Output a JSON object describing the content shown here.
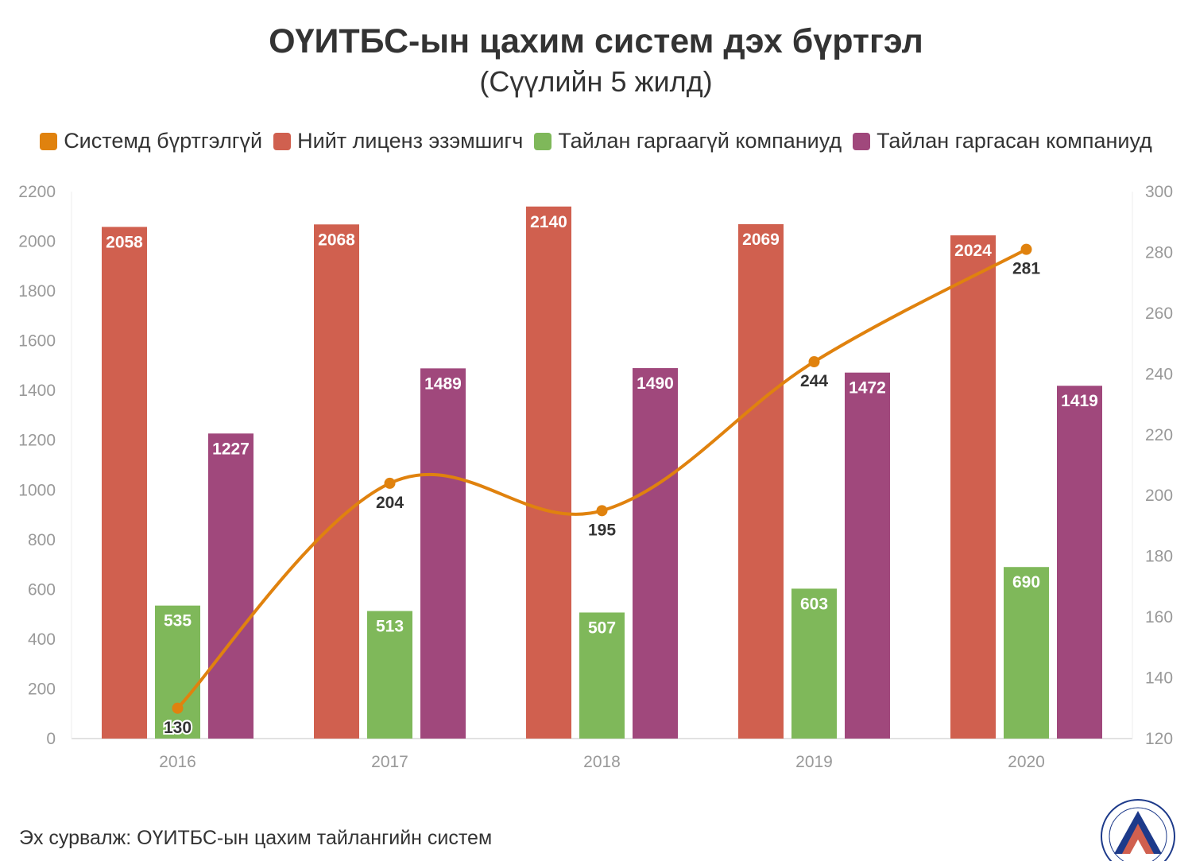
{
  "chart_data": {
    "type": "bar",
    "title": "ОҮИТБС-ын цахим систем дэх бүртгэл",
    "subtitle": "(Сүүлийн 5 жилд)",
    "categories": [
      "2016",
      "2017",
      "2018",
      "2019",
      "2020"
    ],
    "series": [
      {
        "name": "Нийт лиценз эзэмшигч",
        "type": "bar",
        "axis": "left",
        "color": "#d0604f",
        "values": [
          2058,
          2068,
          2140,
          2069,
          2024
        ]
      },
      {
        "name": "Тайлан гаргаагүй компаниуд",
        "type": "bar",
        "axis": "left",
        "color": "#7fb85a",
        "values": [
          535,
          513,
          507,
          603,
          690
        ]
      },
      {
        "name": "Тайлан гаргасан компаниуд",
        "type": "bar",
        "axis": "left",
        "color": "#a0487c",
        "values": [
          1227,
          1489,
          1490,
          1472,
          1419
        ]
      },
      {
        "name": "Системд бүртгэлгүй",
        "type": "line",
        "axis": "right",
        "color": "#e0820e",
        "values": [
          130,
          204,
          195,
          244,
          281
        ]
      }
    ],
    "legend_order": [
      "Системд бүртгэлгүй",
      "Нийт лиценз эзэмшигч",
      "Тайлан гаргаагүй компаниуд",
      "Тайлан гаргасан компаниуд"
    ],
    "y_left": {
      "min": 0,
      "max": 2200,
      "ticks": [
        "0",
        "200",
        "400",
        "600",
        "800",
        "1000",
        "1200",
        "1400",
        "1600",
        "1800",
        "2000",
        "2200"
      ]
    },
    "y_right": {
      "min": 120,
      "max": 300,
      "ticks": [
        "120",
        "140",
        "160",
        "180",
        "200",
        "220",
        "240",
        "260",
        "280",
        "300"
      ]
    },
    "grid": false,
    "legend_position": "top"
  },
  "source": "Эх сурвалж: ОҮИТБС-ын цахим тайлангийн систем"
}
